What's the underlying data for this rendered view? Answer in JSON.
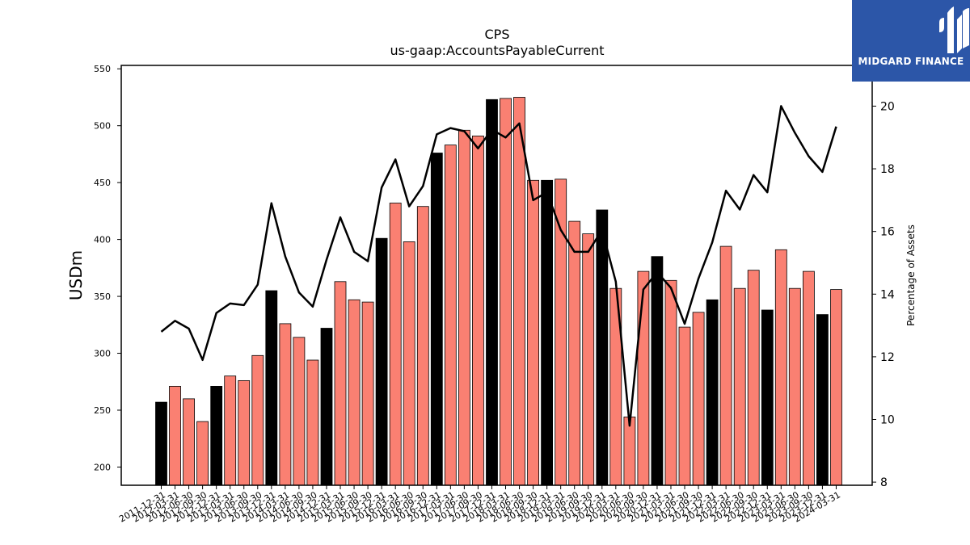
{
  "logo": {
    "text": "MIDGARD FINANCE"
  },
  "colors": {
    "annual_bar": "#000000",
    "quarter_bar": "#fa8072",
    "line": "#000000",
    "logo_bg": "#2c56a8"
  },
  "chart_data": {
    "type": "bar",
    "title": "CPS",
    "subtitle": "us-gaap:AccountsPayableCurrent",
    "ylabel": "USDm",
    "y2label": "Percentage of Assets",
    "ylim": [
      184,
      553
    ],
    "y2lim": [
      7.9,
      21.3
    ],
    "yticks": [
      200,
      250,
      300,
      350,
      400,
      450,
      500,
      550
    ],
    "y2ticks": [
      8,
      10,
      12,
      14,
      16,
      18,
      20
    ],
    "categories": [
      "2011-12-31",
      "2012-03-31",
      "2012-06-30",
      "2012-09-30",
      "2012-12-31",
      "2013-03-31",
      "2013-06-30",
      "2013-09-30",
      "2013-12-31",
      "2014-03-31",
      "2014-06-30",
      "2014-09-30",
      "2014-12-31",
      "2015-03-31",
      "2015-06-30",
      "2015-09-30",
      "2015-12-31",
      "2016-03-31",
      "2016-06-30",
      "2016-09-30",
      "2016-12-31",
      "2017-03-31",
      "2017-06-30",
      "2017-09-30",
      "2017-12-31",
      "2018-03-31",
      "2018-06-30",
      "2018-09-30",
      "2018-12-31",
      "2019-03-31",
      "2019-06-30",
      "2019-09-30",
      "2019-12-31",
      "2020-03-31",
      "2020-06-30",
      "2020-09-30",
      "2020-12-31",
      "2021-03-31",
      "2021-06-30",
      "2021-09-30",
      "2021-12-31",
      "2022-03-31",
      "2022-06-30",
      "2022-09-30",
      "2022-12-31",
      "2023-03-31",
      "2023-06-30",
      "2023-09-30",
      "2023-12-31",
      "2024-03-31"
    ],
    "xtick_labels": [
      "2011-12-31",
      "2012-03-31",
      "2012-06-30",
      "2012-09-30",
      "2012-12-31",
      "2013-03-31",
      "2013-06-30",
      "2013-09-30",
      "2013-12-31",
      "2014-03-31",
      "2014-06-30",
      "2014-09-30",
      "2014-12-31",
      "2015-03-31",
      "2015-06-30",
      "2015-09-30",
      "2015-12-31",
      "2016-03-31",
      "2016-06-30",
      "2016-09-30",
      "2016-12-31",
      "2017-03-31",
      "2017-06-30",
      "2017-09-30",
      "2017-12-31",
      "2018-03-31",
      "2018-06-30",
      "2018-09-30",
      "2018-12-31",
      "2019-03-31",
      "2019-06-30",
      "2019-09-30",
      "2019-12-31",
      "2020-03-31",
      "2020-06-30",
      "2020-09-30",
      "2020-12-31",
      "2021-03-31",
      "2021-06-30",
      "2021-09-30",
      "2021-12-31",
      "2022-03-31",
      "2022-06-30",
      "2022-09-30",
      "2022-12-31",
      "2023-03-31",
      "2023-06-30",
      "2023-09-30",
      "2023-12-31",
      "2024-03-31"
    ],
    "bar_values": [
      257,
      271,
      260,
      240,
      271,
      280,
      276,
      298,
      355,
      326,
      314,
      294,
      322,
      363,
      347,
      345,
      401,
      432,
      398,
      429,
      476,
      483,
      496,
      491,
      523,
      524,
      525,
      452,
      452,
      453,
      416,
      405,
      426,
      357,
      244,
      372,
      385,
      364,
      323,
      336,
      347,
      394,
      357,
      373,
      338,
      391,
      357,
      372,
      334,
      356
    ],
    "bar_kind": [
      "annual",
      "quarter",
      "quarter",
      "quarter",
      "annual",
      "quarter",
      "quarter",
      "quarter",
      "annual",
      "quarter",
      "quarter",
      "quarter",
      "annual",
      "quarter",
      "quarter",
      "quarter",
      "annual",
      "quarter",
      "quarter",
      "quarter",
      "annual",
      "quarter",
      "quarter",
      "quarter",
      "annual",
      "quarter",
      "quarter",
      "quarter",
      "annual",
      "quarter",
      "quarter",
      "quarter",
      "annual",
      "quarter",
      "quarter",
      "quarter",
      "annual",
      "quarter",
      "quarter",
      "quarter",
      "annual",
      "quarter",
      "quarter",
      "quarter",
      "annual",
      "quarter",
      "quarter",
      "quarter",
      "annual",
      "quarter"
    ],
    "line_values": [
      12.8,
      13.15,
      12.9,
      11.9,
      13.4,
      13.7,
      13.65,
      14.3,
      16.9,
      15.2,
      14.05,
      13.6,
      15.1,
      16.45,
      15.35,
      15.05,
      17.4,
      18.3,
      16.8,
      17.45,
      19.1,
      19.3,
      19.2,
      18.65,
      19.25,
      19.0,
      19.45,
      17.0,
      17.25,
      16.05,
      15.35,
      15.35,
      16.05,
      14.4,
      9.8,
      14.15,
      14.7,
      14.2,
      13.05,
      14.5,
      15.65,
      17.3,
      16.7,
      17.8,
      17.25,
      20.0,
      19.15,
      18.4,
      17.9,
      19.35
    ]
  }
}
